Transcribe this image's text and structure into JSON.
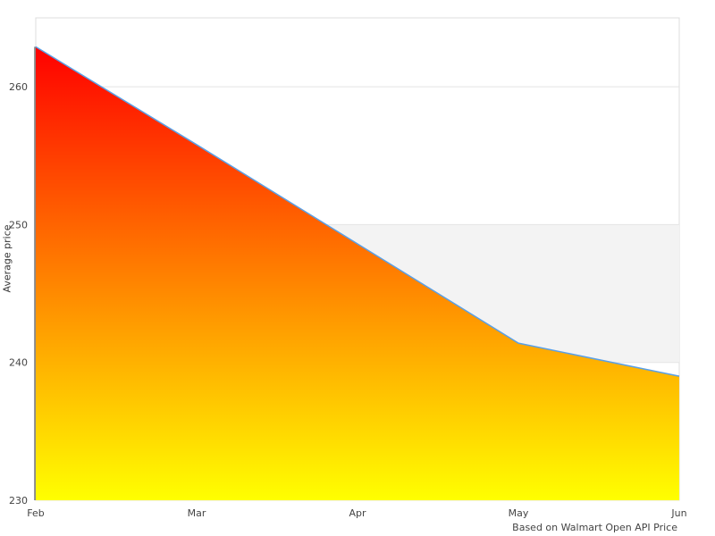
{
  "chart_data": {
    "type": "area",
    "title": "",
    "xlabel": "",
    "ylabel": "Average price",
    "categories": [
      "Feb",
      "Mar",
      "Apr",
      "May",
      "Jun"
    ],
    "series": [
      {
        "values": [
          262.9,
          255.8,
          248.6,
          241.4,
          239.0
        ]
      }
    ],
    "ylim": [
      230,
      265
    ],
    "yticks": [
      230,
      240,
      250,
      260
    ],
    "grid": true,
    "shaded_band": [
      240,
      250
    ],
    "gradient": {
      "top": "#ff0000",
      "bottom": "#ffff00"
    },
    "line_color": "#5aa0e6",
    "band_color": "#f3f3f3"
  },
  "source_note": "Based on Walmart Open API Price"
}
